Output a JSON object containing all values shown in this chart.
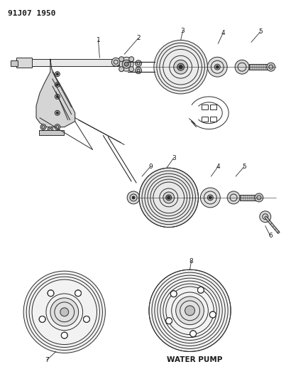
{
  "title": "91J07 1950",
  "background_color": "#ffffff",
  "text_color": "#1a1a1a",
  "line_color": "#2a2a2a",
  "water_pump_label": "WATER PUMP",
  "figsize": [
    4.03,
    5.33
  ],
  "dpi": 100
}
